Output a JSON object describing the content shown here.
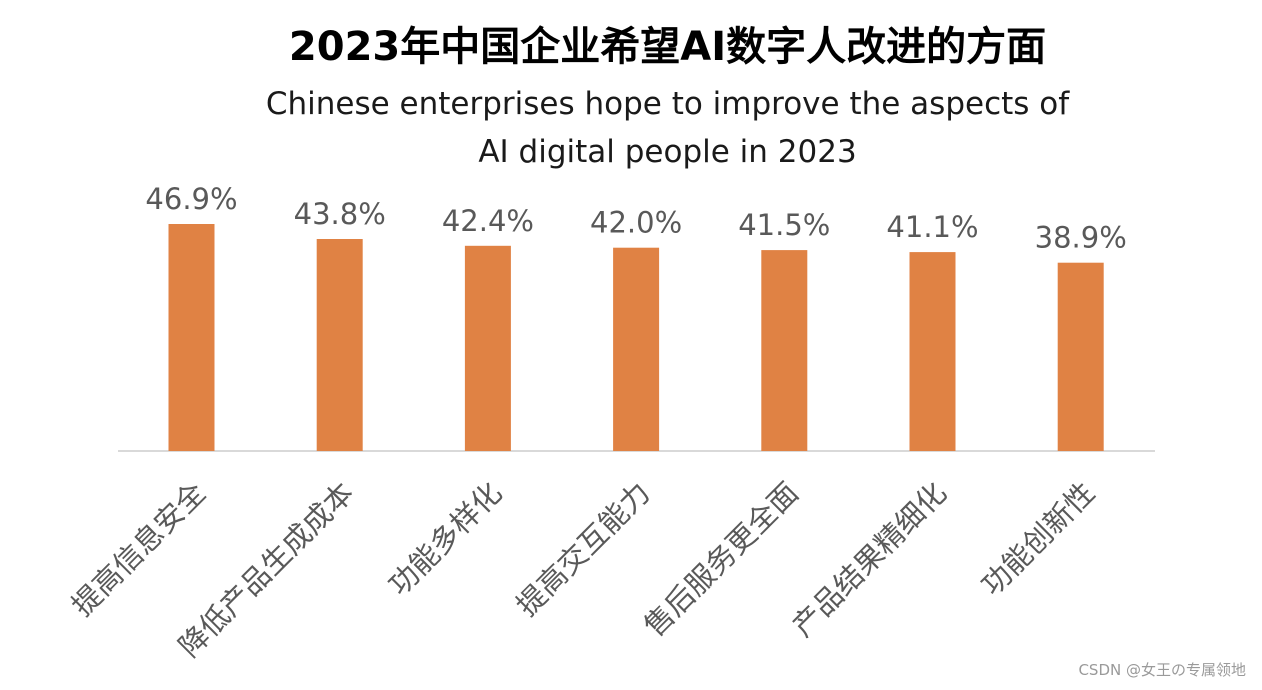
{
  "chart_data": {
    "type": "bar",
    "title": "2023年中国企业希望AI数字人改进的方面",
    "subtitle": "Chinese enterprises hope to improve the aspects of AI digital people in 2023",
    "categories": [
      "提高信息安全",
      "降低产品生成成本",
      "功能多样化",
      "提高交互能力",
      "售后服务更全面",
      "产品结果精细化",
      "功能创新性"
    ],
    "values": [
      46.9,
      43.8,
      42.4,
      42.0,
      41.5,
      41.1,
      38.9
    ],
    "data_labels": [
      "46.9%",
      "43.8%",
      "42.4%",
      "42.0%",
      "41.5%",
      "41.1%",
      "38.9%"
    ],
    "xlabel": "",
    "ylabel": "",
    "unit": "%",
    "ylim": [
      0,
      50
    ],
    "grid": false,
    "legend": "none",
    "bar_color": "#E08244",
    "axis_color": "#d9d9d9",
    "label_color": "#595959"
  },
  "watermark": "CSDN @女王の专属领地"
}
